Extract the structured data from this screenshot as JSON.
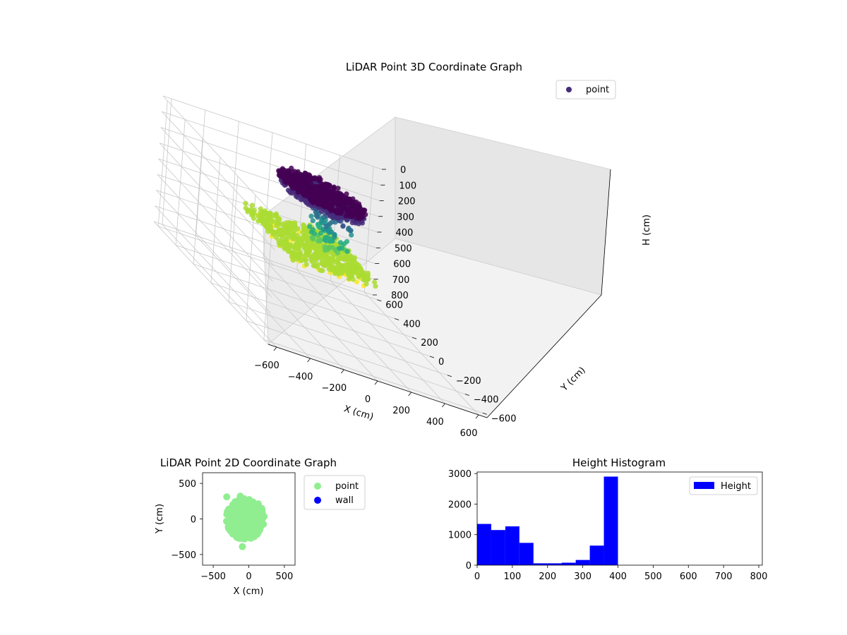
{
  "chart_data": [
    {
      "type": "scatter",
      "projection": "3d",
      "title": "LiDAR Point 3D Coordinate Graph",
      "xlabel": "X (cm)",
      "ylabel": "Y (cm)",
      "zlabel": "H (cm)",
      "xlim": [
        -650,
        650
      ],
      "ylim": [
        -650,
        650
      ],
      "zlim": [
        0,
        800
      ],
      "z_inverted": true,
      "xticks": [
        "−600",
        "−400",
        "−200",
        "0",
        "200",
        "400",
        "600"
      ],
      "yticks": [
        "−600",
        "−400",
        "−200",
        "0",
        "200",
        "400",
        "600"
      ],
      "zticks": [
        "0",
        "100",
        "200",
        "300",
        "400",
        "500",
        "600",
        "700",
        "800"
      ],
      "colormap": "viridis (by height)",
      "legend": {
        "placement": "upper-right",
        "entries": [
          {
            "name": "point",
            "color": "#472c7a"
          }
        ]
      },
      "grid": true,
      "clusters": [
        {
          "x": [
            -330,
            200
          ],
          "y": [
            -300,
            300
          ],
          "h": [
            340,
            400
          ],
          "color": "#3b518b"
        },
        {
          "x": [
            -100,
            120
          ],
          "y": [
            -200,
            150
          ],
          "h": [
            60,
            340
          ],
          "color": "#21908d"
        },
        {
          "x": [
            -300,
            250
          ],
          "y": [
            -250,
            300
          ],
          "h": [
            0,
            60
          ],
          "color": "#c8e020"
        }
      ]
    },
    {
      "type": "scatter",
      "title": "LiDAR Point 2D Coordinate Graph",
      "xlabel": "X (cm)",
      "ylabel": "Y (cm)",
      "xlim": [
        -650,
        650
      ],
      "ylim": [
        -650,
        650
      ],
      "xticks": [
        "−500",
        "0",
        "500"
      ],
      "yticks": [
        "−500",
        "0",
        "500"
      ],
      "legend": {
        "placement": "outside-right",
        "entries": [
          {
            "name": "point",
            "color": "#90ee90"
          },
          {
            "name": "wall",
            "color": "#0000ff"
          }
        ]
      },
      "points_outliers": [
        [
          -310,
          310
        ],
        [
          -120,
          320
        ],
        [
          -90,
          -390
        ]
      ],
      "cluster_extent": {
        "x": [
          -330,
          230
        ],
        "y": [
          -300,
          300
        ]
      }
    },
    {
      "type": "bar",
      "subtype": "histogram",
      "title": "Height Histogram",
      "xlabel": "",
      "ylabel": "",
      "xlim": [
        0,
        810
      ],
      "ylim": [
        0,
        3050
      ],
      "bin_width": 40,
      "bins": [
        0,
        40,
        80,
        120,
        160,
        200,
        240,
        280,
        320,
        360
      ],
      "values": [
        1350,
        1150,
        1270,
        730,
        60,
        60,
        80,
        170,
        640,
        2900
      ],
      "xticks": [
        "0",
        "100",
        "200",
        "300",
        "400",
        "500",
        "600",
        "700",
        "800"
      ],
      "yticks": [
        "0",
        "1000",
        "2000",
        "3000"
      ],
      "color": "#0000ff",
      "legend": {
        "placement": "upper-right",
        "entries": [
          {
            "name": "Height",
            "color": "#0000ff"
          }
        ]
      }
    }
  ]
}
